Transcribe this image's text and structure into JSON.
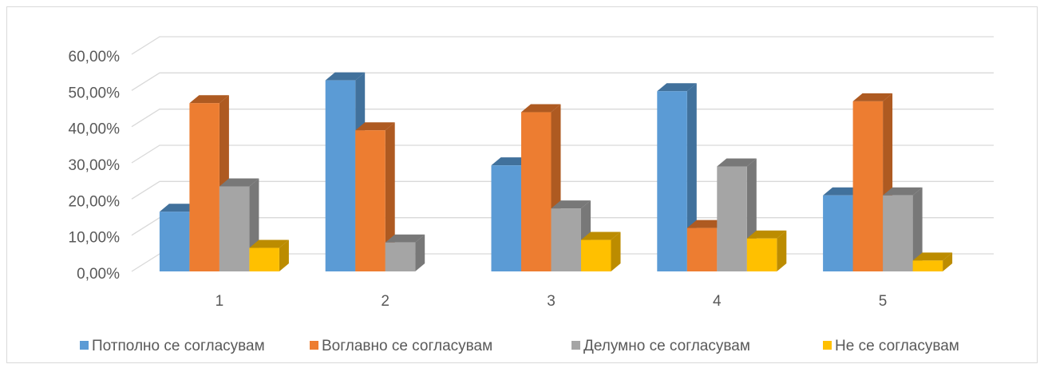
{
  "chart_data": {
    "type": "bar3d",
    "categories": [
      "1",
      "2",
      "3",
      "4",
      "5"
    ],
    "series": [
      {
        "name": "Потполно се согласувам",
        "color": "#5b9bd5",
        "side": "#41719c",
        "values": [
          16.5,
          52.8,
          29.3,
          49.8,
          21
        ]
      },
      {
        "name": "Воглавно се согласувам",
        "color": "#ed7d31",
        "side": "#ae5a21",
        "values": [
          46.5,
          39,
          44,
          12,
          47
        ]
      },
      {
        "name": "Делумно се согласувам",
        "color": "#a5a5a5",
        "side": "#787878",
        "values": [
          23.5,
          8,
          17.4,
          29,
          21
        ]
      },
      {
        "name": "Не се согласувам",
        "color": "#ffc000",
        "side": "#bc8c00",
        "values": [
          6.5,
          0,
          8.7,
          9.1,
          3
        ]
      }
    ],
    "ylim": [
      0,
      60
    ],
    "yticks": [
      {
        "value": 0,
        "label": "0,00%"
      },
      {
        "value": 10,
        "label": "10,00%"
      },
      {
        "value": 20,
        "label": "20,00%"
      },
      {
        "value": 30,
        "label": "30,00%"
      },
      {
        "value": 40,
        "label": "40,00%"
      },
      {
        "value": 50,
        "label": "50,00%"
      },
      {
        "value": 60,
        "label": "60,00%"
      }
    ],
    "grid": true,
    "legend": "bottom"
  }
}
